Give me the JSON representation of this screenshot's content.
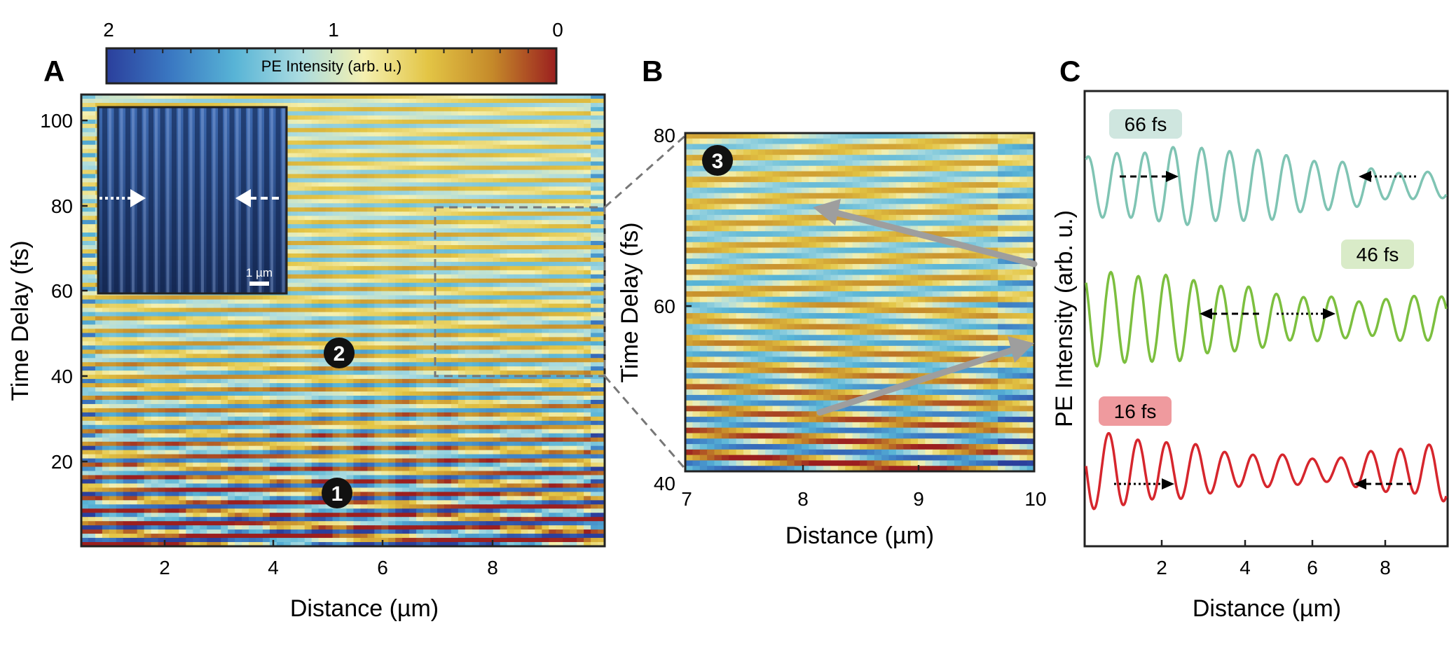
{
  "panels": {
    "a": "A",
    "b": "B",
    "c": "C"
  },
  "colorbar": {
    "label": "PE Intensity (arb. u.)",
    "ticks": [
      "2",
      "1",
      "0"
    ],
    "stops": [
      "#2b3f9c",
      "#3a78c2",
      "#58b4d6",
      "#a9dbe0",
      "#f4f0b0",
      "#e3c545",
      "#c58a2a",
      "#9b1f1f"
    ]
  },
  "colors": {
    "frame": "#222222",
    "dash": "#777777",
    "arrow": "#9e9e9e",
    "marker": "#111111",
    "marker_text": "#ffffff"
  },
  "chart_data": [
    {
      "id": "A",
      "type": "heatmap",
      "title": "",
      "xlabel": "Distance (µm)",
      "ylabel": "Time Delay (fs)",
      "xlim": [
        0.6,
        9.9
      ],
      "ylim": [
        0,
        107
      ],
      "xticks": [
        "2",
        "4",
        "6",
        "8"
      ],
      "yticks": [
        "20",
        "40",
        "60",
        "80",
        "100"
      ],
      "annotations": [
        {
          "label": "1",
          "x": 5.0,
          "y": 12
        },
        {
          "label": "2",
          "x": 5.0,
          "y": 45
        }
      ],
      "zoom_region": {
        "x": [
          7.0,
          9.9
        ],
        "y": [
          40,
          80
        ]
      },
      "inset": {
        "description_hidden": true,
        "scale_bar_label": "1 µm"
      }
    },
    {
      "id": "B",
      "type": "heatmap",
      "title": "",
      "xlabel": "Distance (µm)",
      "ylabel": "Time Delay (fs)",
      "xlim": [
        7,
        10
      ],
      "ylim": [
        40,
        80
      ],
      "xticks": [
        "7",
        "8",
        "9",
        "10"
      ],
      "yticks": [
        "40",
        "60",
        "80"
      ],
      "annotations": [
        {
          "label": "3",
          "x": 7.2,
          "y": 77
        }
      ],
      "arrows": [
        {
          "from": [
            10.0,
            65
          ],
          "to": [
            8.1,
            72
          ]
        },
        {
          "from": [
            8.1,
            48
          ],
          "to": [
            10.0,
            56
          ]
        }
      ]
    },
    {
      "id": "C",
      "type": "line",
      "title": "",
      "xlabel": "Distance (µm)",
      "ylabel": "PE Intensity (arb. u.)",
      "xlim": [
        0.1,
        9.5
      ],
      "xticks": [
        "2",
        "4",
        "6",
        "8"
      ],
      "series": [
        {
          "name": "66 fs",
          "color": "#7fc4b3",
          "label_bg": "#cfe6df",
          "period": 0.74,
          "phase": 0.3
        },
        {
          "name": "46 fs",
          "color": "#7cbf3f",
          "label_bg": "#d9ebc8",
          "period": 0.72,
          "phase": 1.4
        },
        {
          "name": "16 fs",
          "color": "#d6262d",
          "label_bg": "#ef9a9e",
          "period": 0.76,
          "phase": 2.2
        }
      ]
    }
  ]
}
